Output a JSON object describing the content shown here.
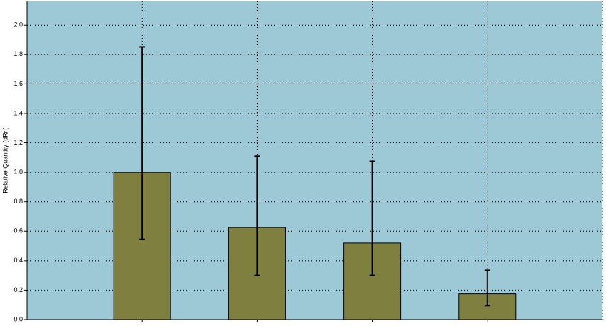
{
  "chart_data": {
    "type": "bar",
    "y_label": "Relative Quantity (dRn)",
    "categories": [
      null,
      null,
      null,
      null
    ],
    "values": [
      1.0,
      0.625,
      0.52,
      0.175
    ],
    "error_lower": [
      0.545,
      0.3,
      0.3,
      0.095
    ],
    "error_upper": [
      1.85,
      1.11,
      1.075,
      0.335
    ],
    "color": "#7f7f3f",
    "background": "#9dc8d6",
    "ylim": [
      0,
      2.16
    ],
    "yticks": [
      {
        "value": 0,
        "label": "0.0"
      },
      {
        "value": 0.2,
        "label": "0.2"
      },
      {
        "value": 0.4,
        "label": "0.4"
      },
      {
        "value": 0.6,
        "label": "0.6"
      },
      {
        "value": 0.8,
        "label": "0.8"
      },
      {
        "value": 1.0,
        "label": "1.0"
      },
      {
        "value": 1.2,
        "label": "1.2"
      },
      {
        "value": 1.4,
        "label": "1.4"
      },
      {
        "value": 1.6,
        "label": "1.6"
      },
      {
        "value": 1.8,
        "label": "1.8"
      },
      {
        "value": 2.0,
        "label": "2.0"
      }
    ],
    "grid": true
  }
}
